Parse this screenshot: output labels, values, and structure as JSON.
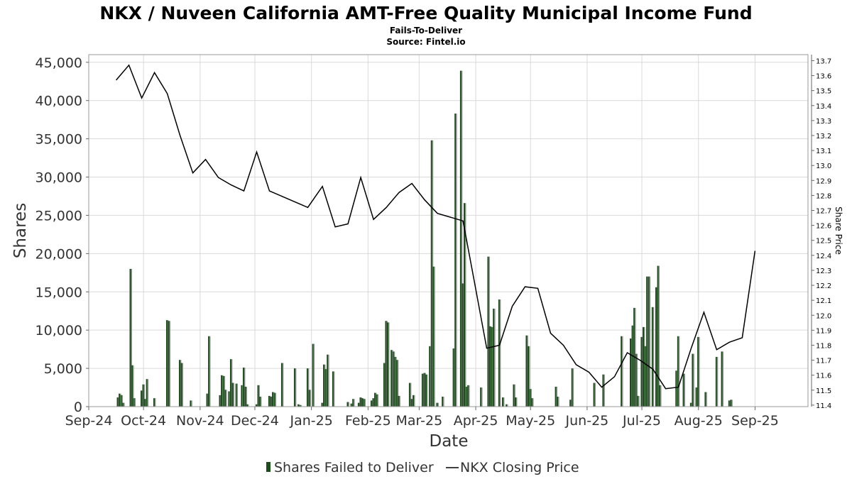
{
  "chart_data": {
    "type": "bar",
    "title": "NKX / Nuveen California AMT-Free Quality Municipal Income Fund",
    "subtitle_1": "Fails-To-Deliver",
    "subtitle_2": "Source: Fintel.io",
    "xlabel": "Date",
    "ylabel": "Shares",
    "y2label": "Share Price",
    "grid": true,
    "legend_position": "bottom",
    "xlim": [
      "2024-09-01",
      "2025-09-30"
    ],
    "ylim": [
      0,
      46000
    ],
    "y2lim": [
      11.39,
      13.74
    ],
    "x_ticks": [
      "Sep-24",
      "Oct-24",
      "Nov-24",
      "Dec-24",
      "Jan-25",
      "Feb-25",
      "Mar-25",
      "Apr-25",
      "May-25",
      "Jun-25",
      "Jul-25",
      "Aug-25",
      "Sep-25"
    ],
    "x_tick_dates": [
      "2024-09-01",
      "2024-10-01",
      "2024-11-01",
      "2024-12-01",
      "2025-01-01",
      "2025-02-01",
      "2025-03-01",
      "2025-04-01",
      "2025-05-01",
      "2025-06-01",
      "2025-07-01",
      "2025-08-01",
      "2025-09-01"
    ],
    "y_ticks": [
      "0",
      "5,000",
      "10,000",
      "15,000",
      "20,000",
      "25,000",
      "30,000",
      "35,000",
      "40,000",
      "45,000"
    ],
    "y_tick_values": [
      0,
      5000,
      10000,
      15000,
      20000,
      25000,
      30000,
      35000,
      40000,
      45000
    ],
    "y2_ticks": [
      "11.4",
      "11.5",
      "11.6",
      "11.7",
      "11.8",
      "11.9",
      "12.0",
      "12.1",
      "12.2",
      "12.3",
      "12.4",
      "12.5",
      "12.6",
      "12.7",
      "12.8",
      "12.9",
      "13.0",
      "13.1",
      "13.2",
      "13.3",
      "13.4",
      "13.5",
      "13.6",
      "13.7"
    ],
    "y2_tick_values": [
      11.4,
      11.5,
      11.6,
      11.7,
      11.8,
      11.9,
      12.0,
      12.1,
      12.2,
      12.3,
      12.4,
      12.5,
      12.6,
      12.7,
      12.8,
      12.9,
      13.0,
      13.1,
      13.2,
      13.3,
      13.4,
      13.5,
      13.6,
      13.7
    ],
    "series": [
      {
        "name": "Shares Failed to Deliver",
        "color": "#1a4d1a",
        "kind": "bar",
        "points": [
          [
            "2024-09-17",
            1200
          ],
          [
            "2024-09-18",
            1700
          ],
          [
            "2024-09-19",
            1500
          ],
          [
            "2024-09-20",
            500
          ],
          [
            "2024-09-24",
            18000
          ],
          [
            "2024-09-25",
            5400
          ],
          [
            "2024-09-26",
            1100
          ],
          [
            "2024-09-30",
            2100
          ],
          [
            "2024-10-01",
            2900
          ],
          [
            "2024-10-02",
            1000
          ],
          [
            "2024-10-03",
            3600
          ],
          [
            "2024-10-07",
            1100
          ],
          [
            "2024-10-14",
            11300
          ],
          [
            "2024-10-15",
            11200
          ],
          [
            "2024-10-21",
            6100
          ],
          [
            "2024-10-22",
            5700
          ],
          [
            "2024-10-27",
            800
          ],
          [
            "2024-11-05",
            1700
          ],
          [
            "2024-11-06",
            9200
          ],
          [
            "2024-11-12",
            1500
          ],
          [
            "2024-11-13",
            4100
          ],
          [
            "2024-11-14",
            4000
          ],
          [
            "2024-11-15",
            2200
          ],
          [
            "2024-11-17",
            2000
          ],
          [
            "2024-11-18",
            6200
          ],
          [
            "2024-11-19",
            3100
          ],
          [
            "2024-11-21",
            3000
          ],
          [
            "2024-11-24",
            2800
          ],
          [
            "2024-11-25",
            5100
          ],
          [
            "2024-11-26",
            2600
          ],
          [
            "2024-11-27",
            300
          ],
          [
            "2024-12-02",
            300
          ],
          [
            "2024-12-03",
            2800
          ],
          [
            "2024-12-04",
            1300
          ],
          [
            "2024-12-09",
            1400
          ],
          [
            "2024-12-10",
            1300
          ],
          [
            "2024-12-11",
            1900
          ],
          [
            "2024-12-12",
            1800
          ],
          [
            "2024-12-16",
            5700
          ],
          [
            "2024-12-23",
            5000
          ],
          [
            "2024-12-25",
            300
          ],
          [
            "2024-12-26",
            200
          ],
          [
            "2024-12-30",
            5000
          ],
          [
            "2024-12-31",
            2200
          ],
          [
            "2025-01-02",
            8200
          ],
          [
            "2025-01-07",
            500
          ],
          [
            "2025-01-08",
            5500
          ],
          [
            "2025-01-09",
            4900
          ],
          [
            "2025-01-10",
            6800
          ],
          [
            "2025-01-13",
            4600
          ],
          [
            "2025-01-21",
            600
          ],
          [
            "2025-01-23",
            400
          ],
          [
            "2025-01-24",
            1000
          ],
          [
            "2025-01-27",
            500
          ],
          [
            "2025-01-28",
            1200
          ],
          [
            "2025-01-29",
            1100
          ],
          [
            "2025-01-30",
            1000
          ],
          [
            "2025-02-03",
            800
          ],
          [
            "2025-02-04",
            1100
          ],
          [
            "2025-02-05",
            1800
          ],
          [
            "2025-02-06",
            1600
          ],
          [
            "2025-02-10",
            5700
          ],
          [
            "2025-02-11",
            11200
          ],
          [
            "2025-02-12",
            11000
          ],
          [
            "2025-02-14",
            7400
          ],
          [
            "2025-02-15",
            7200
          ],
          [
            "2025-02-16",
            6500
          ],
          [
            "2025-02-17",
            6100
          ],
          [
            "2025-02-18",
            1400
          ],
          [
            "2025-02-24",
            3100
          ],
          [
            "2025-02-25",
            1000
          ],
          [
            "2025-02-26",
            1500
          ],
          [
            "2025-03-03",
            4300
          ],
          [
            "2025-03-04",
            4400
          ],
          [
            "2025-03-05",
            4200
          ],
          [
            "2025-03-07",
            7900
          ],
          [
            "2025-03-08",
            34800
          ],
          [
            "2025-03-09",
            18300
          ],
          [
            "2025-03-11",
            500
          ],
          [
            "2025-03-14",
            1300
          ],
          [
            "2025-03-20",
            7600
          ],
          [
            "2025-03-21",
            38300
          ],
          [
            "2025-03-24",
            43900
          ],
          [
            "2025-03-25",
            16100
          ],
          [
            "2025-03-26",
            26600
          ],
          [
            "2025-03-27",
            2600
          ],
          [
            "2025-03-28",
            2800
          ],
          [
            "2025-04-04",
            2500
          ],
          [
            "2025-04-08",
            19600
          ],
          [
            "2025-04-09",
            10500
          ],
          [
            "2025-04-10",
            10400
          ],
          [
            "2025-04-11",
            12800
          ],
          [
            "2025-04-14",
            14000
          ],
          [
            "2025-04-16",
            1200
          ],
          [
            "2025-04-18",
            300
          ],
          [
            "2025-04-22",
            2900
          ],
          [
            "2025-04-23",
            1200
          ],
          [
            "2025-04-29",
            9300
          ],
          [
            "2025-04-30",
            7900
          ],
          [
            "2025-05-01",
            2300
          ],
          [
            "2025-05-02",
            1100
          ],
          [
            "2025-05-15",
            2600
          ],
          [
            "2025-05-16",
            1300
          ],
          [
            "2025-05-23",
            900
          ],
          [
            "2025-05-24",
            5000
          ],
          [
            "2025-06-05",
            3100
          ],
          [
            "2025-06-10",
            4200
          ],
          [
            "2025-06-20",
            9200
          ],
          [
            "2025-06-25",
            8900
          ],
          [
            "2025-06-26",
            10600
          ],
          [
            "2025-06-27",
            12900
          ],
          [
            "2025-06-28",
            6900
          ],
          [
            "2025-06-29",
            1400
          ],
          [
            "2025-07-01",
            9100
          ],
          [
            "2025-07-02",
            10400
          ],
          [
            "2025-07-03",
            7900
          ],
          [
            "2025-07-04",
            17000
          ],
          [
            "2025-07-05",
            17000
          ],
          [
            "2025-07-07",
            13000
          ],
          [
            "2025-07-09",
            15600
          ],
          [
            "2025-07-10",
            18400
          ],
          [
            "2025-07-11",
            2800
          ],
          [
            "2025-07-20",
            4700
          ],
          [
            "2025-07-21",
            9200
          ],
          [
            "2025-07-24",
            4300
          ],
          [
            "2025-07-28",
            500
          ],
          [
            "2025-07-29",
            6900
          ],
          [
            "2025-07-31",
            2500
          ],
          [
            "2025-08-01",
            9100
          ],
          [
            "2025-08-05",
            1900
          ],
          [
            "2025-08-11",
            6500
          ],
          [
            "2025-08-14",
            7200
          ],
          [
            "2025-08-18",
            800
          ],
          [
            "2025-08-19",
            900
          ]
        ]
      },
      {
        "name": "NKX Closing Price",
        "color": "#000000",
        "kind": "line",
        "axis": "right",
        "points": [
          [
            "2024-09-16",
            13.57
          ],
          [
            "2024-09-23",
            13.67
          ],
          [
            "2024-09-30",
            13.45
          ],
          [
            "2024-10-07",
            13.62
          ],
          [
            "2024-10-14",
            13.48
          ],
          [
            "2024-10-21",
            13.2
          ],
          [
            "2024-10-28",
            12.95
          ],
          [
            "2024-11-04",
            13.04
          ],
          [
            "2024-11-11",
            12.92
          ],
          [
            "2024-11-18",
            12.87
          ],
          [
            "2024-11-25",
            12.83
          ],
          [
            "2024-12-02",
            13.09
          ],
          [
            "2024-12-09",
            12.83
          ],
          [
            "2024-12-30",
            12.72
          ],
          [
            "2025-01-07",
            12.86
          ],
          [
            "2025-01-14",
            12.59
          ],
          [
            "2025-01-21",
            12.61
          ],
          [
            "2025-01-28",
            12.92
          ],
          [
            "2025-02-04",
            12.64
          ],
          [
            "2025-02-11",
            12.72
          ],
          [
            "2025-02-18",
            12.82
          ],
          [
            "2025-02-25",
            12.88
          ],
          [
            "2025-03-04",
            12.77
          ],
          [
            "2025-03-11",
            12.68
          ],
          [
            "2025-03-25",
            12.63
          ],
          [
            "2025-03-31",
            12.24
          ],
          [
            "2025-04-07",
            11.78
          ],
          [
            "2025-04-14",
            11.8
          ],
          [
            "2025-04-21",
            12.06
          ],
          [
            "2025-04-28",
            12.19
          ],
          [
            "2025-05-05",
            12.18
          ],
          [
            "2025-05-12",
            11.88
          ],
          [
            "2025-05-19",
            11.8
          ],
          [
            "2025-05-26",
            11.67
          ],
          [
            "2025-06-02",
            11.62
          ],
          [
            "2025-06-09",
            11.52
          ],
          [
            "2025-06-16",
            11.59
          ],
          [
            "2025-06-23",
            11.75
          ],
          [
            "2025-06-30",
            11.7
          ],
          [
            "2025-07-07",
            11.64
          ],
          [
            "2025-07-14",
            11.51
          ],
          [
            "2025-07-21",
            11.52
          ],
          [
            "2025-07-28",
            11.78
          ],
          [
            "2025-08-04",
            12.02
          ],
          [
            "2025-08-11",
            11.77
          ],
          [
            "2025-08-18",
            11.82
          ],
          [
            "2025-08-25",
            11.85
          ],
          [
            "2025-09-01",
            12.43
          ]
        ]
      }
    ]
  },
  "legend": {
    "fails_label": "Shares Failed to Deliver",
    "price_label": "NKX Closing Price"
  }
}
